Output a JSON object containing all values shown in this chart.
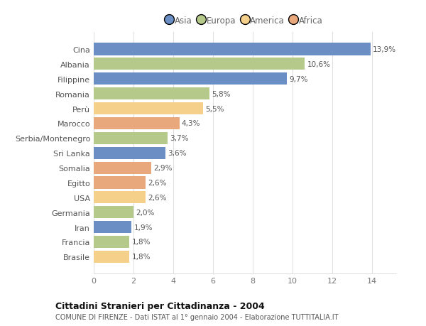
{
  "categories": [
    "Brasile",
    "Francia",
    "Iran",
    "Germania",
    "USA",
    "Egitto",
    "Somalia",
    "Sri Lanka",
    "Serbia/Montenegro",
    "Marocco",
    "Perù",
    "Romania",
    "Filippine",
    "Albania",
    "Cina"
  ],
  "values": [
    1.8,
    1.8,
    1.9,
    2.0,
    2.6,
    2.6,
    2.9,
    3.6,
    3.7,
    4.3,
    5.5,
    5.8,
    9.7,
    10.6,
    13.9
  ],
  "labels": [
    "1,8%",
    "1,8%",
    "1,9%",
    "2,0%",
    "2,6%",
    "2,6%",
    "2,9%",
    "3,6%",
    "3,7%",
    "4,3%",
    "5,5%",
    "5,8%",
    "9,7%",
    "10,6%",
    "13,9%"
  ],
  "colors": [
    "#f5d08a",
    "#b5c98a",
    "#6b8fc4",
    "#b5c98a",
    "#f5d08a",
    "#e8a87c",
    "#e8a87c",
    "#6b8fc4",
    "#b5c98a",
    "#e8a87c",
    "#f5d08a",
    "#b5c98a",
    "#6b8fc4",
    "#b5c98a",
    "#6b8fc4"
  ],
  "legend_labels": [
    "Asia",
    "Europa",
    "America",
    "Africa"
  ],
  "legend_colors": [
    "#6b8fc4",
    "#b5c98a",
    "#f5d08a",
    "#e8a87c"
  ],
  "title": "Cittadini Stranieri per Cittadinanza - 2004",
  "subtitle": "COMUNE DI FIRENZE - Dati ISTAT al 1° gennaio 2004 - Elaborazione TUTTITALIA.IT",
  "xlim": [
    0,
    15.2
  ],
  "xticks": [
    0,
    2,
    4,
    6,
    8,
    10,
    12,
    14
  ],
  "background_color": "#ffffff",
  "bar_height": 0.82,
  "grid_color": "#e0e0e0"
}
